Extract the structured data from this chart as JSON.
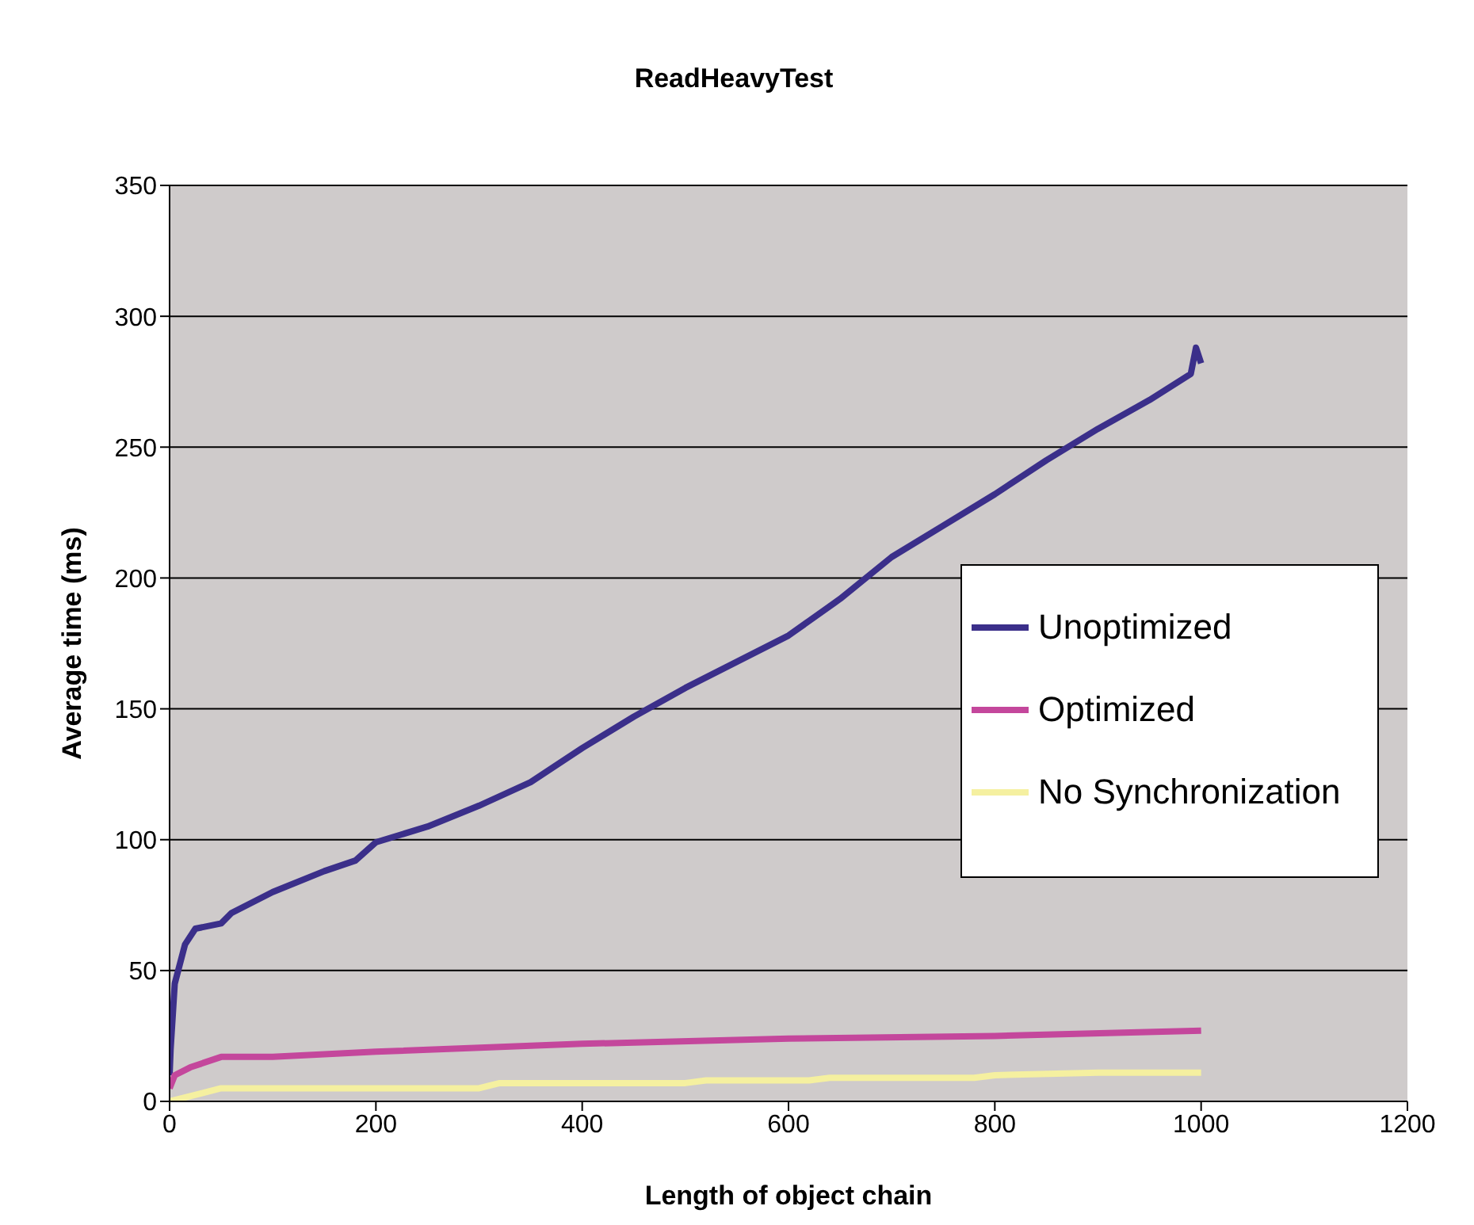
{
  "chart_data": {
    "type": "line",
    "title": "ReadHeavyTest",
    "xlabel": "Length of object chain",
    "ylabel": "Average time (ms)",
    "xlim": [
      0,
      1200
    ],
    "xticks": [
      0,
      200,
      400,
      600,
      800,
      1000,
      1200
    ],
    "ylim": [
      0,
      350
    ],
    "yticks": [
      0,
      50,
      100,
      150,
      200,
      250,
      300,
      350
    ],
    "grid": "y",
    "legend": "right",
    "marker": "none",
    "line_style": "solid",
    "series": [
      {
        "name": "Unoptimized",
        "color": "#3b2f8a",
        "x": [
          0,
          1,
          5,
          15,
          25,
          50,
          60,
          100,
          150,
          180,
          200,
          250,
          300,
          350,
          400,
          450,
          500,
          550,
          600,
          650,
          700,
          750,
          800,
          850,
          900,
          950,
          990,
          995,
          1000
        ],
        "values": [
          10,
          20,
          45,
          60,
          66,
          68,
          72,
          80,
          88,
          92,
          99,
          105,
          113,
          122,
          135,
          147,
          158,
          168,
          178,
          192,
          208,
          220,
          232,
          245,
          257,
          268,
          278,
          288,
          282
        ]
      },
      {
        "name": "Optimized",
        "color": "#c4479c",
        "x": [
          0,
          5,
          20,
          50,
          100,
          200,
          400,
          600,
          800,
          1000
        ],
        "values": [
          5,
          10,
          13,
          17,
          17,
          19,
          22,
          24,
          25,
          27
        ]
      },
      {
        "name": "No Synchronization",
        "color": "#f5f0a0",
        "x": [
          0,
          20,
          50,
          100,
          300,
          320,
          500,
          520,
          620,
          640,
          780,
          800,
          900,
          1000
        ],
        "values": [
          0,
          2,
          5,
          5,
          5,
          7,
          7,
          8,
          8,
          9,
          9,
          10,
          11,
          11
        ]
      }
    ]
  }
}
